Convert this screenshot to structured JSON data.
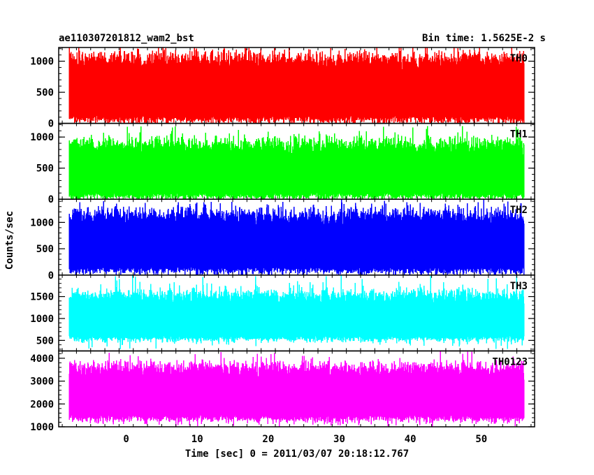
{
  "header": {
    "left_title": "ae110307201812_wam2_bst",
    "right_title": "Bin time: 1.5625E-2 s"
  },
  "axes": {
    "xlabel": "Time [sec] 0 = 2011/03/07 20:18:12.767",
    "ylabel": "Counts/sec"
  },
  "chart_data": {
    "type": "line",
    "xlabel": "Time [sec] 0 = 2011/03/07 20:18:12.767",
    "ylabel": "Counts/sec",
    "xlim": [
      -9.5,
      57.5
    ],
    "x_data_range": [
      -8,
      56
    ],
    "x_ticks": [
      0,
      10,
      20,
      30,
      40,
      50
    ],
    "x_tick_labels": [
      "0",
      "10",
      "20",
      "30",
      "40",
      "50"
    ],
    "bin_time_s": 0.015625,
    "panels": [
      {
        "label": "TH0",
        "color": "#ff0000",
        "ylim": [
          0,
          1220
        ],
        "y_ticks": [
          0,
          500,
          1000
        ],
        "y_tick_labels": [
          "0",
          "500",
          "1000"
        ],
        "typical_range": [
          120,
          1000
        ],
        "mean": 520,
        "peak": 1220,
        "floor": 0
      },
      {
        "label": "TH1",
        "color": "#00ff00",
        "ylim": [
          0,
          1220
        ],
        "y_ticks": [
          0,
          500,
          1000
        ],
        "y_tick_labels": [
          "0",
          "500",
          "1000"
        ],
        "typical_range": [
          100,
          850
        ],
        "mean": 450,
        "peak": 1180,
        "floor": 0
      },
      {
        "label": "TH2",
        "color": "#0000ff",
        "ylim": [
          0,
          1440
        ],
        "y_ticks": [
          0,
          500,
          1000
        ],
        "y_tick_labels": [
          "0",
          "500",
          "1000"
        ],
        "typical_range": [
          150,
          1100
        ],
        "mean": 650,
        "peak": 1440,
        "floor": 20
      },
      {
        "label": "TH3",
        "color": "#00ffff",
        "ylim": [
          260,
          1990
        ],
        "y_ticks": [
          500,
          1000,
          1500
        ],
        "y_tick_labels": [
          "500",
          "1000",
          "1500"
        ],
        "typical_range": [
          600,
          1500
        ],
        "mean": 1030,
        "peak": 1990,
        "floor": 300
      },
      {
        "label": "TH0123",
        "color": "#ff00ff",
        "ylim": [
          1000,
          4320
        ],
        "y_ticks": [
          1000,
          2000,
          3000,
          4000
        ],
        "y_tick_labels": [
          "1000",
          "2000",
          "3000",
          "4000"
        ],
        "typical_range": [
          1500,
          3500
        ],
        "mean": 2500,
        "peak": 4320,
        "floor": 1100
      }
    ]
  }
}
